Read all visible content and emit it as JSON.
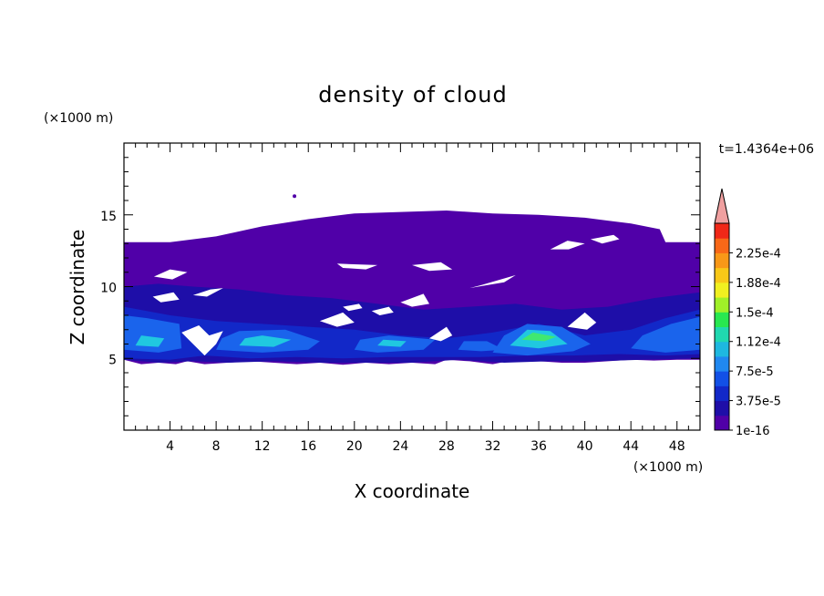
{
  "chart_data": {
    "type": "heatmap",
    "title": "density of cloud",
    "xlabel": "X coordinate",
    "ylabel": "Z coordinate",
    "x_unit": "(×1000 m)",
    "y_unit": "(×1000 m)",
    "time_label": "t=1.4364e+06",
    "xlim": [
      0,
      50
    ],
    "ylim": [
      0,
      20
    ],
    "x_ticks": [
      4,
      8,
      12,
      16,
      20,
      24,
      28,
      32,
      36,
      40,
      44,
      48
    ],
    "y_ticks": [
      5,
      10,
      15
    ],
    "grid": false,
    "colorbar": {
      "labels": [
        "1e-16",
        "3.75e-5",
        "7.5e-5",
        "1.12e-4",
        "1.5e-4",
        "1.88e-4",
        "2.25e-4"
      ],
      "colors": [
        "#5000a8",
        "#1e0ea8",
        "#1228c8",
        "#1250e6",
        "#2088f0",
        "#1eb8e0",
        "#20d8b0",
        "#28e850",
        "#a0f028",
        "#f0f020",
        "#f8c818",
        "#f89818",
        "#f86818",
        "#f02818"
      ],
      "extend_color": "#f0a0a0"
    },
    "shape_colors": {
      "background_cloud": "#5000a8",
      "band_dark": "#1e0ea8",
      "band_mid": "#1228c8",
      "band_light": "#1a64ec",
      "core_cyan": "#20c8e0",
      "core_green": "#40e870"
    }
  }
}
